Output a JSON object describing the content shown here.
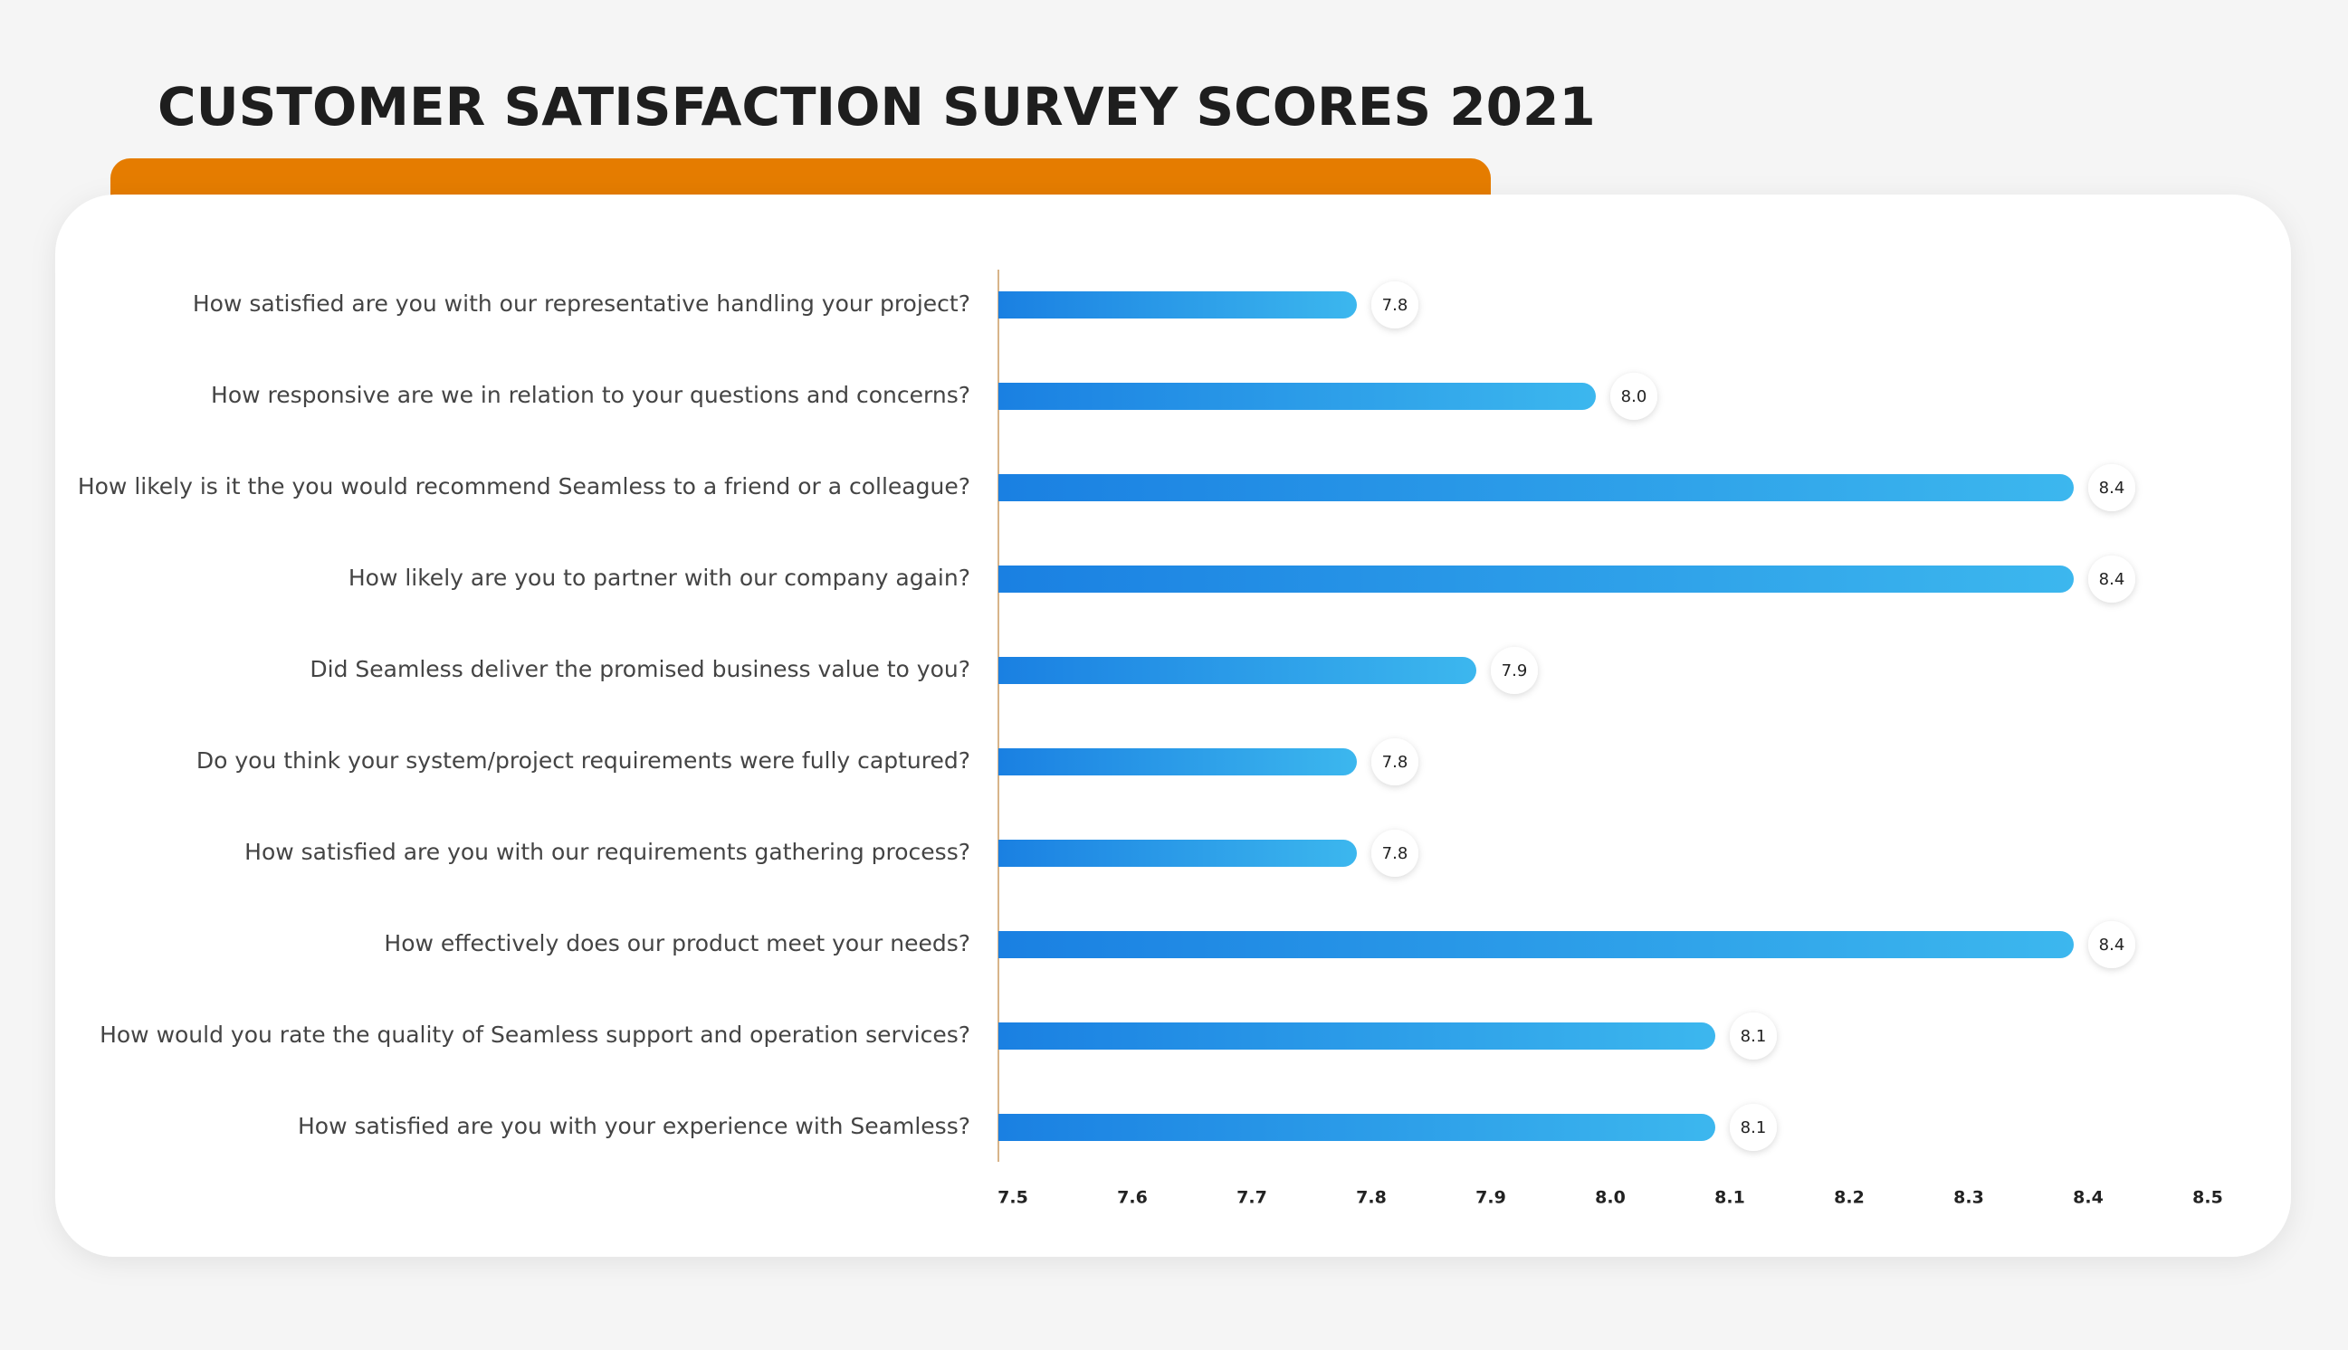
{
  "chart_data": {
    "type": "hbar",
    "title": "CUSTOMER SATISFACTION SURVEY SCORES 2021",
    "categories": [
      "How satisfied are you with our representative handling your project?",
      "How responsive are we in relation to your questions and concerns?",
      "How likely is it the you would recommend Seamless to a friend or a colleague?",
      "How likely are you to partner with our company again?",
      "Did Seamless deliver the promised business value to you?",
      "Do you think your system/project requirements were fully captured?",
      "How satisfied are you with our requirements gathering process?",
      "How effectively does our product meet your needs?",
      "How would you rate the quality of Seamless support and operation services?",
      "How satisfied are you with your experience with Seamless?"
    ],
    "values": [
      7.8,
      8.0,
      8.4,
      8.4,
      7.9,
      7.8,
      7.8,
      8.4,
      8.1,
      8.1
    ],
    "value_labels": [
      "7.8",
      "8.0",
      "8.4",
      "8.4",
      "7.9",
      "7.8",
      "7.8",
      "8.4",
      "8.1",
      "8.1"
    ],
    "color_gradient": [
      "#1a80e2",
      "#3cb7ee"
    ],
    "xlim": [
      7.5,
      8.5
    ],
    "xticks": [
      7.5,
      7.6,
      7.7,
      7.8,
      7.9,
      {
        "value": 8,
        "label": "8.0"
      },
      8.1,
      8.2,
      8.3,
      8.4,
      8.5
    ]
  }
}
